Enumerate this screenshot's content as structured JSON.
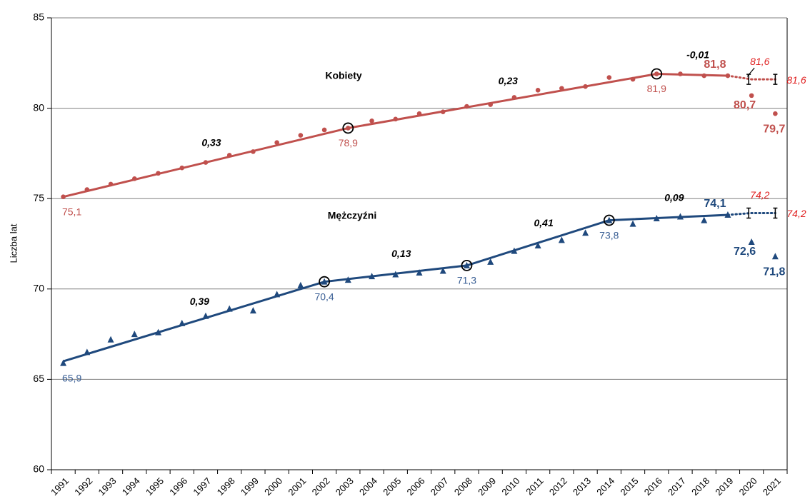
{
  "chart_data": {
    "type": "line",
    "y_axis_label": "Liczba lat",
    "categories": [
      "1991",
      "1992",
      "1993",
      "1994",
      "1995",
      "1996",
      "1997",
      "1998",
      "1999",
      "2000",
      "2001",
      "2002",
      "2003",
      "2004",
      "2005",
      "2006",
      "2007",
      "2008",
      "2009",
      "2010",
      "2011",
      "2012",
      "2013",
      "2014",
      "2015",
      "2016",
      "2017",
      "2018",
      "2019",
      "2020",
      "2021"
    ],
    "ylim": [
      60,
      85
    ],
    "yticks": [
      60,
      65,
      70,
      75,
      80,
      85
    ],
    "grid": true,
    "series": [
      {
        "name": "Kobiety",
        "color": "#c0504d",
        "marker": "circle",
        "values": [
          75.1,
          75.5,
          75.8,
          76.1,
          76.4,
          76.7,
          77.0,
          77.4,
          77.6,
          78.1,
          78.5,
          78.8,
          78.9,
          79.3,
          79.4,
          79.7,
          79.8,
          80.1,
          80.2,
          80.6,
          81.0,
          81.1,
          81.2,
          81.7,
          81.6,
          81.9,
          81.9,
          81.8,
          81.8,
          80.7,
          79.7
        ],
        "value_labels": [
          "75,1",
          null,
          null,
          null,
          null,
          null,
          null,
          null,
          null,
          null,
          null,
          null,
          "78,9",
          null,
          null,
          null,
          null,
          null,
          null,
          null,
          null,
          null,
          null,
          null,
          null,
          "81,9",
          null,
          null,
          "81,8",
          "80,7",
          "79,7"
        ],
        "trend": {
          "categories": [
            "1991",
            "2003",
            "2016",
            "2019"
          ],
          "values": [
            75.1,
            78.9,
            81.9,
            81.8
          ],
          "slopes": [
            {
              "value": 0.33,
              "label": "0,33"
            },
            {
              "value": 0.23,
              "label": "0,23"
            },
            {
              "value": -0.01,
              "label": "-0,01"
            }
          ]
        },
        "forecast": {
          "categories": [
            "2019",
            "2020",
            "2021"
          ],
          "values": [
            81.8,
            81.6,
            81.6
          ],
          "value_labels": [
            null,
            "81,6",
            "81,6"
          ]
        }
      },
      {
        "name": "Mężczyźni",
        "color": "#1f497d",
        "marker": "triangle",
        "values": [
          65.9,
          66.5,
          67.2,
          67.5,
          67.6,
          68.1,
          68.5,
          68.9,
          68.8,
          69.7,
          70.2,
          70.4,
          70.5,
          70.7,
          70.8,
          70.9,
          71.0,
          71.3,
          71.5,
          72.1,
          72.4,
          72.7,
          73.1,
          73.8,
          73.6,
          73.9,
          74.0,
          73.8,
          74.1,
          72.6,
          71.8
        ],
        "value_labels": [
          "65,9",
          null,
          null,
          null,
          null,
          null,
          null,
          null,
          null,
          null,
          null,
          "70,4",
          null,
          null,
          null,
          null,
          null,
          "71,3",
          null,
          null,
          null,
          null,
          null,
          "73,8",
          null,
          null,
          null,
          null,
          "74,1",
          "72,6",
          "71,8"
        ],
        "trend": {
          "categories": [
            "1991",
            "2002",
            "2008",
            "2014",
            "2019"
          ],
          "values": [
            66.0,
            70.4,
            71.3,
            73.8,
            74.1
          ],
          "slopes": [
            {
              "value": 0.39,
              "label": "0,39"
            },
            {
              "value": 0.13,
              "label": "0,13"
            },
            {
              "value": 0.41,
              "label": "0,41"
            },
            {
              "value": 0.09,
              "label": "0,09"
            }
          ]
        },
        "forecast": {
          "categories": [
            "2019",
            "2020",
            "2021"
          ],
          "values": [
            74.1,
            74.2,
            74.2
          ],
          "value_labels": [
            null,
            "74,2",
            "74,2"
          ]
        }
      }
    ]
  }
}
